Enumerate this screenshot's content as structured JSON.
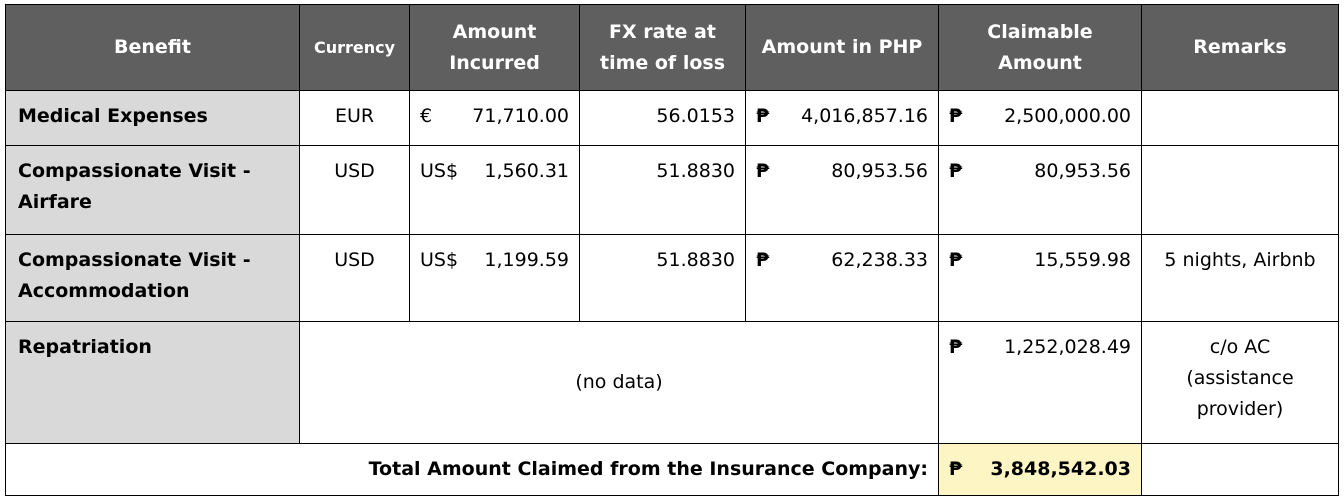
{
  "headers": {
    "benefit": "Benefit",
    "currency": "Currency",
    "amount_incurred": [
      "Amount",
      "Incurred"
    ],
    "fx_rate": [
      "FX rate at",
      "time of loss"
    ],
    "amount_php": "Amount in PHP",
    "claimable": [
      "Claimable",
      "Amount"
    ],
    "remarks": "Remarks"
  },
  "rows": [
    {
      "benefit": [
        "Medical Expenses"
      ],
      "currency": "EUR",
      "sym": "€",
      "incurred": "71,710.00",
      "fx": "56.0153",
      "php_sym": "₱",
      "php": "4,016,857.16",
      "cl_sym": "₱",
      "claimable": "2,500,000.00",
      "remarks": []
    },
    {
      "benefit": [
        "Compassionate Visit -",
        "Airfare"
      ],
      "currency": "USD",
      "sym": "US$",
      "incurred": "1,560.31",
      "fx": "51.8830",
      "php_sym": "₱",
      "php": "80,953.56",
      "cl_sym": "₱",
      "claimable": "80,953.56",
      "remarks": []
    },
    {
      "benefit": [
        "Compassionate Visit -",
        "Accommodation"
      ],
      "currency": "USD",
      "sym": "US$",
      "incurred": "1,199.59",
      "fx": "51.8830",
      "php_sym": "₱",
      "php": "62,238.33",
      "cl_sym": "₱",
      "claimable": "15,559.98",
      "remarks": [
        "5 nights, Airbnb"
      ]
    }
  ],
  "repatriation": {
    "benefit": "Repatriation",
    "nodata": "(no data)",
    "cl_sym": "₱",
    "claimable": "1,252,028.49",
    "remarks": [
      "c/o AC",
      "(assistance",
      "provider)"
    ]
  },
  "total": {
    "label": "Total Amount Claimed from the Insurance Company:",
    "sym": "₱",
    "value": "3,848,542.03"
  }
}
